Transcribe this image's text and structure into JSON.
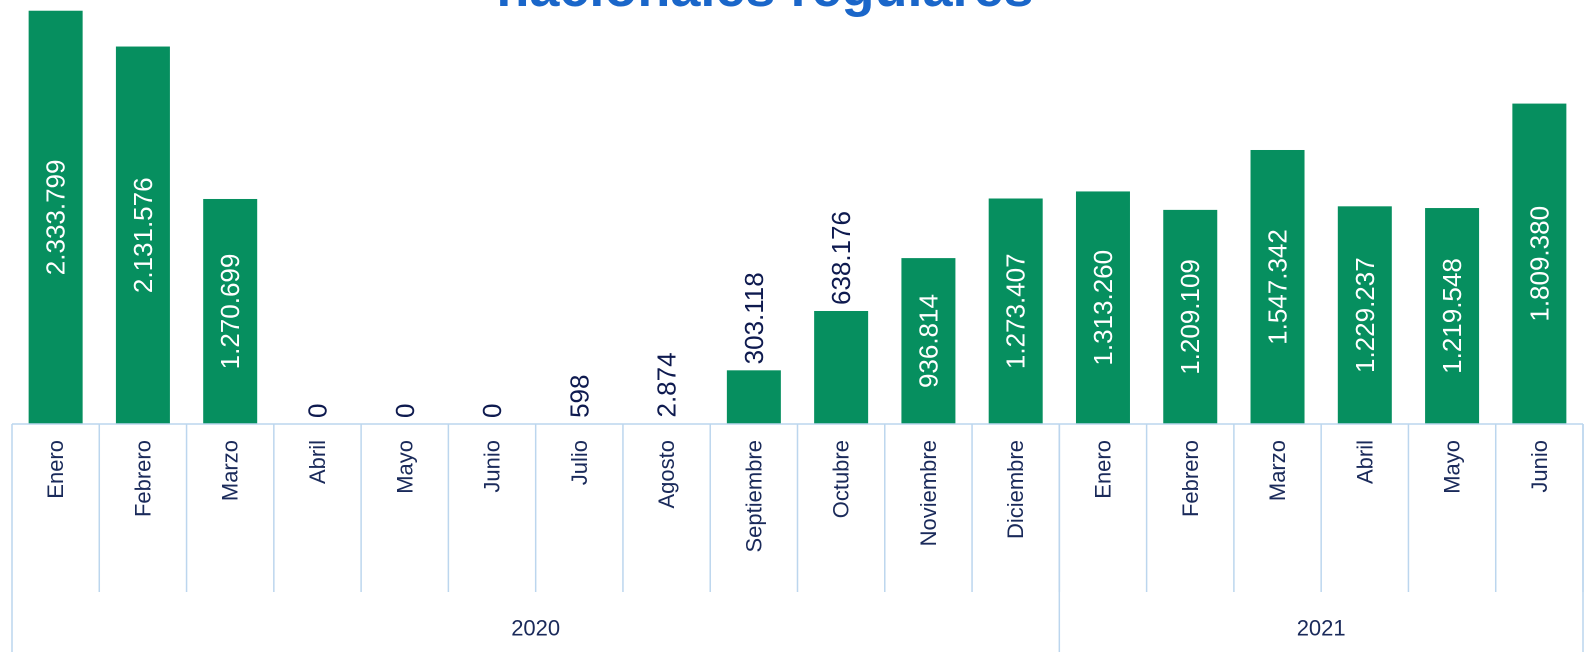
{
  "chart_data": {
    "type": "bar",
    "title": "nacionales regulares",
    "categories": [
      "Enero",
      "Febrero",
      "Marzo",
      "Abril",
      "Mayo",
      "Junio",
      "Julio",
      "Agosto",
      "Septiembre",
      "Octubre",
      "Noviembre",
      "Diciembre",
      "Enero",
      "Febrero",
      "Marzo",
      "Abril",
      "Mayo",
      "Junio"
    ],
    "groups": [
      {
        "label": "2020",
        "span": 12
      },
      {
        "label": "2021",
        "span": 6
      }
    ],
    "values": [
      2333799,
      2131576,
      1270699,
      0,
      0,
      0,
      598,
      2874,
      303118,
      638176,
      936814,
      1273407,
      1313260,
      1209109,
      1547342,
      1229237,
      1219548,
      1809380
    ],
    "value_labels": [
      "2.333.799",
      "2.131.576",
      "1.270.699",
      "0",
      "0",
      "0",
      "598",
      "2.874",
      "303.118",
      "638.176",
      "936.814",
      "1.273.407",
      "1.313.260",
      "1.209.109",
      "1.547.342",
      "1.229.237",
      "1.219.548",
      "1.809.380"
    ],
    "color": "#068f5f",
    "ylim": [
      0,
      2400000
    ]
  }
}
